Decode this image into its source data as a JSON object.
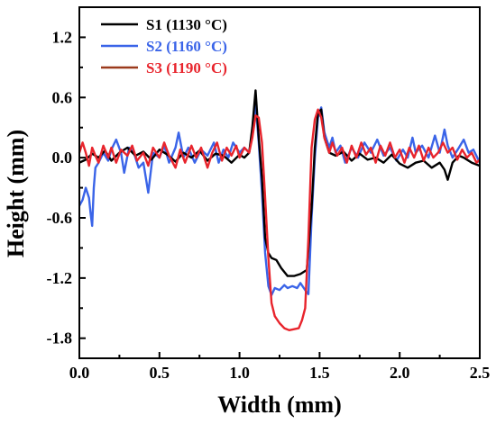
{
  "chart_data": {
    "type": "line",
    "xlabel": "Width (mm)",
    "ylabel": "Height (mm)",
    "xlim": [
      0.0,
      2.5
    ],
    "ylim": [
      -2.0,
      1.5
    ],
    "xticks": [
      "0.0",
      "0.5",
      "1.0",
      "1.5",
      "2.0",
      "2.5"
    ],
    "yticks": [
      "1.2",
      "0.6",
      "0.0",
      "-0.6",
      "-1.2",
      "-1.8"
    ],
    "grid": false,
    "legend_position": "top-left",
    "series": [
      {
        "name": "S1 (1130 °C)",
        "color": "#000000",
        "points": [
          [
            0.0,
            -0.05
          ],
          [
            0.04,
            -0.02
          ],
          [
            0.08,
            0.04
          ],
          [
            0.12,
            0.0
          ],
          [
            0.16,
            0.07
          ],
          [
            0.2,
            -0.03
          ],
          [
            0.25,
            0.05
          ],
          [
            0.3,
            0.1
          ],
          [
            0.35,
            0.02
          ],
          [
            0.4,
            0.06
          ],
          [
            0.45,
            -0.02
          ],
          [
            0.5,
            0.08
          ],
          [
            0.55,
            0.03
          ],
          [
            0.6,
            -0.04
          ],
          [
            0.65,
            0.05
          ],
          [
            0.7,
            0.0
          ],
          [
            0.75,
            0.07
          ],
          [
            0.8,
            -0.03
          ],
          [
            0.85,
            0.04
          ],
          [
            0.9,
            0.02
          ],
          [
            0.95,
            -0.05
          ],
          [
            1.0,
            0.03
          ],
          [
            1.03,
            0.0
          ],
          [
            1.06,
            0.05
          ],
          [
            1.08,
            0.3
          ],
          [
            1.1,
            0.67
          ],
          [
            1.12,
            0.2
          ],
          [
            1.14,
            -0.2
          ],
          [
            1.16,
            -0.8
          ],
          [
            1.18,
            -0.95
          ],
          [
            1.2,
            -1.0
          ],
          [
            1.23,
            -1.02
          ],
          [
            1.26,
            -1.1
          ],
          [
            1.3,
            -1.18
          ],
          [
            1.34,
            -1.18
          ],
          [
            1.38,
            -1.16
          ],
          [
            1.42,
            -1.12
          ],
          [
            1.45,
            -0.5
          ],
          [
            1.47,
            0.1
          ],
          [
            1.49,
            0.45
          ],
          [
            1.51,
            0.48
          ],
          [
            1.53,
            0.2
          ],
          [
            1.56,
            0.05
          ],
          [
            1.6,
            0.02
          ],
          [
            1.65,
            0.06
          ],
          [
            1.7,
            -0.03
          ],
          [
            1.75,
            0.04
          ],
          [
            1.8,
            -0.02
          ],
          [
            1.85,
            0.0
          ],
          [
            1.9,
            -0.05
          ],
          [
            1.95,
            0.03
          ],
          [
            2.0,
            -0.06
          ],
          [
            2.05,
            -0.1
          ],
          [
            2.1,
            -0.05
          ],
          [
            2.15,
            -0.03
          ],
          [
            2.2,
            -0.1
          ],
          [
            2.25,
            -0.05
          ],
          [
            2.28,
            -0.12
          ],
          [
            2.3,
            -0.22
          ],
          [
            2.33,
            -0.05
          ],
          [
            2.37,
            0.02
          ],
          [
            2.4,
            0.0
          ],
          [
            2.45,
            -0.05
          ],
          [
            2.5,
            -0.08
          ]
        ]
      },
      {
        "name": "S2 (1160 °C)",
        "color": "#3a64e8",
        "points": [
          [
            0.0,
            -0.48
          ],
          [
            0.02,
            -0.42
          ],
          [
            0.04,
            -0.3
          ],
          [
            0.06,
            -0.4
          ],
          [
            0.07,
            -0.55
          ],
          [
            0.08,
            -0.68
          ],
          [
            0.09,
            -0.3
          ],
          [
            0.1,
            -0.1
          ],
          [
            0.12,
            -0.05
          ],
          [
            0.15,
            0.05
          ],
          [
            0.18,
            -0.03
          ],
          [
            0.2,
            0.08
          ],
          [
            0.23,
            0.18
          ],
          [
            0.26,
            0.05
          ],
          [
            0.28,
            -0.15
          ],
          [
            0.31,
            0.1
          ],
          [
            0.34,
            0.05
          ],
          [
            0.37,
            -0.1
          ],
          [
            0.4,
            -0.05
          ],
          [
            0.43,
            -0.35
          ],
          [
            0.46,
            0.05
          ],
          [
            0.5,
            0.0
          ],
          [
            0.53,
            0.12
          ],
          [
            0.56,
            -0.05
          ],
          [
            0.6,
            0.1
          ],
          [
            0.62,
            0.25
          ],
          [
            0.65,
            0.0
          ],
          [
            0.68,
            0.1
          ],
          [
            0.72,
            -0.05
          ],
          [
            0.76,
            0.08
          ],
          [
            0.8,
            0.02
          ],
          [
            0.84,
            0.15
          ],
          [
            0.87,
            -0.05
          ],
          [
            0.9,
            0.08
          ],
          [
            0.93,
            0.0
          ],
          [
            0.96,
            0.15
          ],
          [
            1.0,
            0.05
          ],
          [
            1.03,
            0.1
          ],
          [
            1.06,
            0.05
          ],
          [
            1.08,
            0.25
          ],
          [
            1.1,
            0.55
          ],
          [
            1.12,
            0.15
          ],
          [
            1.14,
            -0.35
          ],
          [
            1.16,
            -0.95
          ],
          [
            1.18,
            -1.28
          ],
          [
            1.2,
            -1.37
          ],
          [
            1.22,
            -1.3
          ],
          [
            1.25,
            -1.32
          ],
          [
            1.28,
            -1.27
          ],
          [
            1.3,
            -1.3
          ],
          [
            1.33,
            -1.28
          ],
          [
            1.36,
            -1.3
          ],
          [
            1.38,
            -1.25
          ],
          [
            1.41,
            -1.32
          ],
          [
            1.43,
            -1.36
          ],
          [
            1.45,
            -0.6
          ],
          [
            1.47,
            0.0
          ],
          [
            1.49,
            0.4
          ],
          [
            1.51,
            0.5
          ],
          [
            1.53,
            0.25
          ],
          [
            1.56,
            0.1
          ],
          [
            1.58,
            0.2
          ],
          [
            1.6,
            0.05
          ],
          [
            1.63,
            0.12
          ],
          [
            1.66,
            -0.05
          ],
          [
            1.7,
            0.1
          ],
          [
            1.74,
            0.0
          ],
          [
            1.78,
            0.15
          ],
          [
            1.82,
            0.05
          ],
          [
            1.86,
            0.18
          ],
          [
            1.9,
            0.02
          ],
          [
            1.94,
            0.1
          ],
          [
            1.98,
            -0.03
          ],
          [
            2.02,
            0.08
          ],
          [
            2.05,
            0.0
          ],
          [
            2.08,
            0.2
          ],
          [
            2.1,
            0.05
          ],
          [
            2.14,
            0.12
          ],
          [
            2.18,
            0.0
          ],
          [
            2.22,
            0.22
          ],
          [
            2.25,
            0.05
          ],
          [
            2.28,
            0.28
          ],
          [
            2.3,
            0.12
          ],
          [
            2.33,
            0.0
          ],
          [
            2.37,
            0.1
          ],
          [
            2.4,
            0.18
          ],
          [
            2.43,
            0.05
          ],
          [
            2.46,
            0.08
          ],
          [
            2.5,
            -0.05
          ]
        ]
      },
      {
        "name": "S3 (1190 °C)",
        "color": "#e8242c",
        "line_color": "#9b3a1c",
        "points": [
          [
            0.0,
            0.05
          ],
          [
            0.02,
            0.15
          ],
          [
            0.04,
            0.05
          ],
          [
            0.06,
            -0.08
          ],
          [
            0.08,
            0.1
          ],
          [
            0.1,
            0.02
          ],
          [
            0.12,
            -0.05
          ],
          [
            0.15,
            0.12
          ],
          [
            0.18,
            0.0
          ],
          [
            0.2,
            0.1
          ],
          [
            0.23,
            -0.05
          ],
          [
            0.26,
            0.08
          ],
          [
            0.3,
            0.02
          ],
          [
            0.33,
            0.12
          ],
          [
            0.36,
            -0.03
          ],
          [
            0.4,
            0.05
          ],
          [
            0.43,
            -0.08
          ],
          [
            0.46,
            0.1
          ],
          [
            0.5,
            0.0
          ],
          [
            0.53,
            0.15
          ],
          [
            0.56,
            0.02
          ],
          [
            0.6,
            -0.1
          ],
          [
            0.63,
            0.08
          ],
          [
            0.66,
            -0.05
          ],
          [
            0.7,
            0.12
          ],
          [
            0.73,
            0.0
          ],
          [
            0.76,
            0.1
          ],
          [
            0.8,
            -0.1
          ],
          [
            0.83,
            0.05
          ],
          [
            0.86,
            0.15
          ],
          [
            0.89,
            -0.03
          ],
          [
            0.92,
            0.1
          ],
          [
            0.95,
            0.02
          ],
          [
            0.98,
            0.12
          ],
          [
            1.0,
            0.0
          ],
          [
            1.03,
            0.1
          ],
          [
            1.06,
            0.05
          ],
          [
            1.08,
            0.2
          ],
          [
            1.1,
            0.42
          ],
          [
            1.12,
            0.4
          ],
          [
            1.14,
            0.15
          ],
          [
            1.16,
            -0.4
          ],
          [
            1.18,
            -1.0
          ],
          [
            1.2,
            -1.45
          ],
          [
            1.22,
            -1.58
          ],
          [
            1.25,
            -1.65
          ],
          [
            1.28,
            -1.7
          ],
          [
            1.31,
            -1.72
          ],
          [
            1.34,
            -1.71
          ],
          [
            1.37,
            -1.7
          ],
          [
            1.39,
            -1.62
          ],
          [
            1.41,
            -1.5
          ],
          [
            1.43,
            -0.8
          ],
          [
            1.45,
            0.1
          ],
          [
            1.47,
            0.38
          ],
          [
            1.49,
            0.48
          ],
          [
            1.51,
            0.4
          ],
          [
            1.53,
            0.2
          ],
          [
            1.56,
            0.05
          ],
          [
            1.58,
            0.15
          ],
          [
            1.61,
            0.02
          ],
          [
            1.64,
            0.1
          ],
          [
            1.67,
            -0.05
          ],
          [
            1.7,
            0.12
          ],
          [
            1.73,
            0.0
          ],
          [
            1.76,
            0.15
          ],
          [
            1.79,
            0.03
          ],
          [
            1.82,
            0.1
          ],
          [
            1.85,
            -0.05
          ],
          [
            1.88,
            0.12
          ],
          [
            1.91,
            0.02
          ],
          [
            1.94,
            0.15
          ],
          [
            1.97,
            0.0
          ],
          [
            2.0,
            0.08
          ],
          [
            2.03,
            -0.05
          ],
          [
            2.06,
            0.1
          ],
          [
            2.09,
            0.0
          ],
          [
            2.12,
            0.12
          ],
          [
            2.15,
            -0.03
          ],
          [
            2.18,
            0.1
          ],
          [
            2.21,
            0.0
          ],
          [
            2.24,
            0.05
          ],
          [
            2.27,
            0.15
          ],
          [
            2.3,
            0.05
          ],
          [
            2.33,
            0.1
          ],
          [
            2.36,
            -0.02
          ],
          [
            2.39,
            0.08
          ],
          [
            2.42,
            0.0
          ],
          [
            2.45,
            0.05
          ],
          [
            2.48,
            -0.05
          ],
          [
            2.5,
            -0.02
          ]
        ]
      }
    ]
  }
}
